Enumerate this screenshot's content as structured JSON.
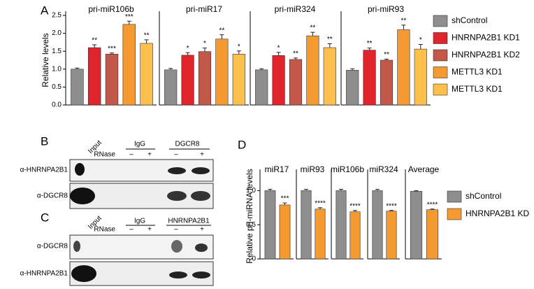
{
  "chart_data": [
    {
      "type": "bar",
      "panel": "A",
      "ylabel": "Relative levels",
      "categories": [
        "pri-miR106b",
        "pri-miR17",
        "pri-miR324",
        "pri-miR93"
      ],
      "ylim": [
        0,
        2.5
      ],
      "yticks": [
        {
          "value": 0,
          "label": "0.0"
        },
        0.5,
        {
          "value": 1,
          "label": "1.0"
        },
        1.5,
        {
          "value": 2,
          "label": "2.0"
        },
        2.5
      ],
      "series": [
        {
          "name": "shControl",
          "color": "#8e8e8e",
          "values": [
            1.0,
            0.98,
            0.98,
            0.97
          ],
          "errors": [
            0.03,
            0.04,
            0.03,
            0.04
          ],
          "annotations": [
            null,
            null,
            null,
            null
          ]
        },
        {
          "name": "HNRNPA2B1 KD1",
          "color": "#e0242b",
          "values": [
            1.6,
            1.39,
            1.38,
            1.53
          ],
          "errors": [
            0.08,
            0.07,
            0.09,
            0.06
          ],
          "annotations": [
            "**",
            "*",
            "*",
            "**"
          ]
        },
        {
          "name": "HNRNPA2B1  KD2",
          "color": "#c3574a",
          "values": [
            1.42,
            1.49,
            1.27,
            1.25
          ],
          "errors": [
            0.03,
            0.1,
            0.04,
            0.03
          ],
          "annotations": [
            "***",
            "*",
            "**",
            "**"
          ]
        },
        {
          "name": "METTL3 KD1",
          "color": "#f49a31",
          "values": [
            2.25,
            1.84,
            1.93,
            2.1
          ],
          "errors": [
            0.09,
            0.12,
            0.1,
            0.13
          ],
          "annotations": [
            "***",
            "**",
            "**",
            "**"
          ]
        },
        {
          "name": "METTL3 KD1",
          "color": "#fdc04c",
          "values": [
            1.72,
            1.42,
            1.6,
            1.56
          ],
          "errors": [
            0.1,
            0.09,
            0.11,
            0.13
          ],
          "annotations": [
            "**",
            "*",
            "**",
            "*"
          ]
        }
      ]
    },
    {
      "type": "bar",
      "panel": "D",
      "ylabel": "Relative pri-miRNA levels",
      "categories": [
        "miR17",
        "miR93",
        "miR106b",
        "miR324",
        "Average"
      ],
      "ylim": [
        0,
        1.25
      ],
      "yticks": [
        0,
        0.5,
        {
          "value": 1,
          "label": "1.0"
        }
      ],
      "series": [
        {
          "name": "shControl",
          "color": "#8e8e8e",
          "values": [
            1.0,
            1.0,
            1.0,
            1.0,
            0.99
          ],
          "errors": [
            0.02,
            0.02,
            0.02,
            0.02,
            0.01
          ],
          "annotations": [
            null,
            null,
            null,
            null,
            null
          ]
        },
        {
          "name": "HNRNPA2B1 KD",
          "color": "#f49a31",
          "values": [
            0.79,
            0.73,
            0.69,
            0.7,
            0.72
          ],
          "errors": [
            0.03,
            0.02,
            0.02,
            0.01,
            0.01
          ],
          "annotations": [
            "***",
            "****",
            "****",
            "****",
            "****"
          ]
        }
      ]
    }
  ],
  "blots": [
    {
      "letter": "B",
      "input": "Input",
      "groups": [
        "IgG",
        "DGCR8"
      ],
      "rnase": "RNase",
      "signs": [
        "–",
        "+",
        "–",
        "+"
      ],
      "antibodies": [
        "α-HNRNPA2B1",
        "α-DGCR8"
      ]
    },
    {
      "letter": "C",
      "input": "Input",
      "groups": [
        "IgG",
        "HNRNPA2B1"
      ],
      "rnase": "RNase",
      "signs": [
        "–",
        "+",
        "–",
        "+"
      ],
      "antibodies": [
        "α-DGCR8",
        "α-HNRNPA2B1"
      ]
    }
  ]
}
